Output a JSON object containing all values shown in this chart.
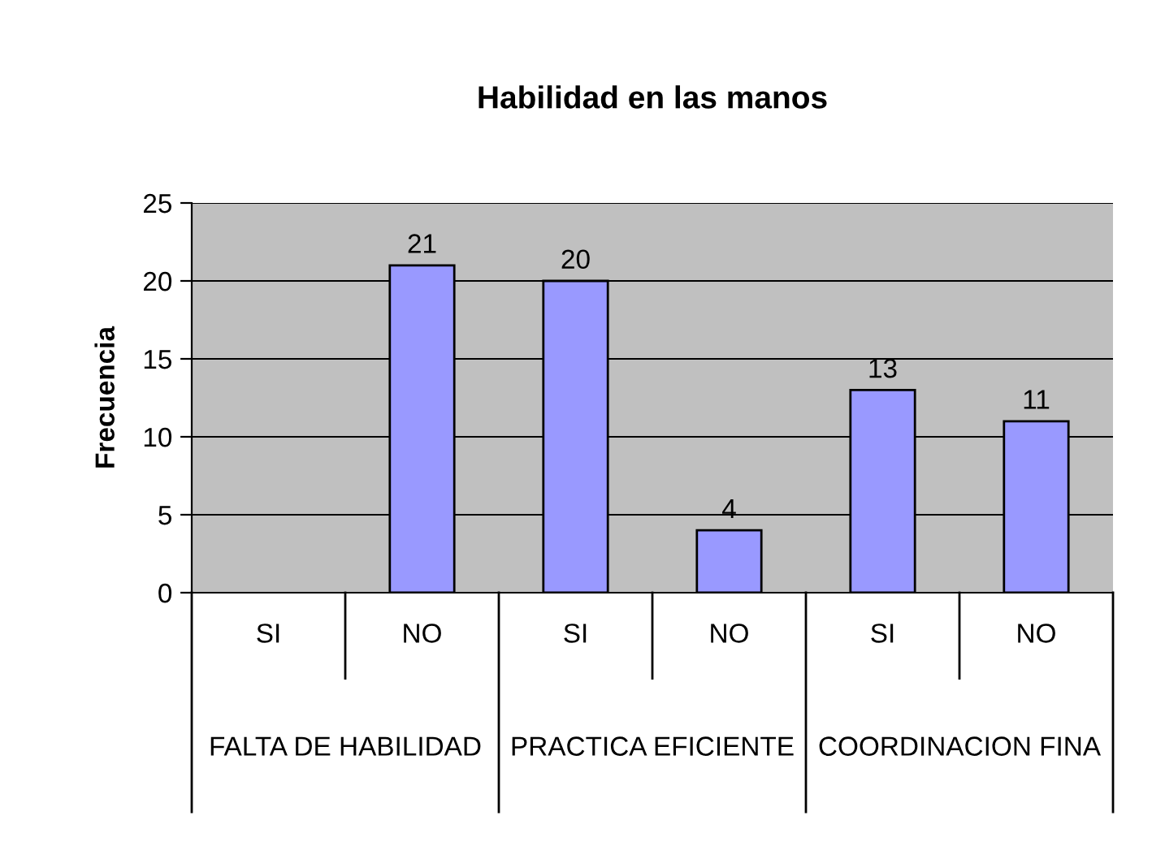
{
  "chart_data": {
    "type": "bar",
    "title": "Habilidad en las manos",
    "ylabel": "Frecuencia",
    "categories": [
      "SI",
      "NO",
      "SI",
      "NO",
      "SI",
      "NO"
    ],
    "annotations": [
      "FALTA DE HABILIDAD",
      "PRACTICA EFICIENTE",
      "COORDINACION FINA"
    ],
    "values": [
      null,
      21,
      20,
      4,
      13,
      11
    ],
    "value_labels": [
      null,
      "21",
      "20",
      "4",
      "13",
      "11"
    ],
    "color": "#9999ff",
    "ylim": [
      0,
      25
    ],
    "yticks": [
      0,
      5,
      10,
      15,
      20,
      25
    ],
    "grid": "y"
  }
}
